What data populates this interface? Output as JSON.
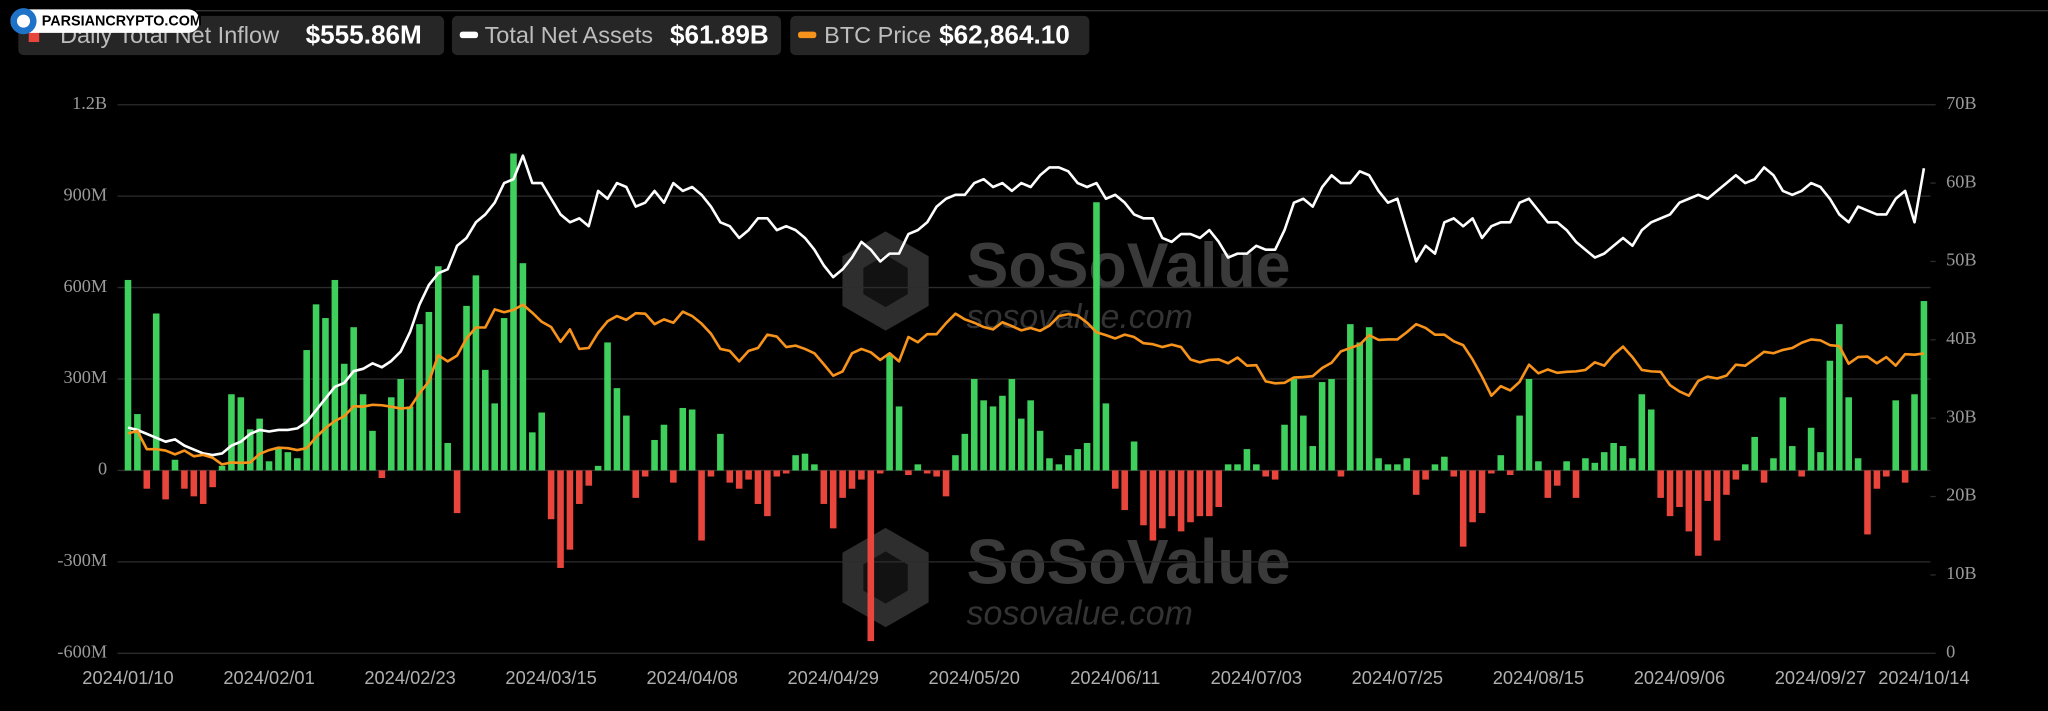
{
  "chart_data": {
    "type": "bar",
    "categories": [
      "2024/01/10",
      null,
      null,
      null,
      null,
      null,
      null,
      null,
      null,
      null,
      null,
      null,
      null,
      null,
      null,
      "2024/02/01",
      null,
      null,
      null,
      null,
      null,
      null,
      null,
      null,
      null,
      null,
      null,
      null,
      null,
      null,
      "2024/02/23",
      null,
      null,
      null,
      null,
      null,
      null,
      null,
      null,
      null,
      null,
      null,
      null,
      null,
      null,
      "2024/03/15",
      null,
      null,
      null,
      null,
      null,
      null,
      null,
      null,
      null,
      null,
      null,
      null,
      null,
      null,
      "2024/04/08",
      null,
      null,
      null,
      null,
      null,
      null,
      null,
      null,
      null,
      null,
      null,
      null,
      null,
      null,
      "2024/04/29",
      null,
      null,
      null,
      null,
      null,
      null,
      null,
      null,
      null,
      null,
      null,
      null,
      null,
      null,
      "2024/05/20",
      null,
      null,
      null,
      null,
      null,
      null,
      null,
      null,
      null,
      null,
      null,
      null,
      null,
      null,
      "2024/06/11",
      null,
      null,
      null,
      null,
      null,
      null,
      null,
      null,
      null,
      null,
      null,
      null,
      null,
      null,
      "2024/07/03",
      null,
      null,
      null,
      null,
      null,
      null,
      null,
      null,
      null,
      null,
      null,
      null,
      null,
      null,
      "2024/07/25",
      null,
      null,
      null,
      null,
      null,
      null,
      null,
      null,
      null,
      null,
      null,
      null,
      null,
      null,
      "2024/08/15",
      null,
      null,
      null,
      null,
      null,
      null,
      null,
      null,
      null,
      null,
      null,
      null,
      null,
      null,
      "2024/09/06",
      null,
      null,
      null,
      null,
      null,
      null,
      null,
      null,
      null,
      null,
      null,
      null,
      null,
      null,
      "2024/09/27",
      null,
      null,
      null,
      null,
      null,
      null,
      null,
      null,
      null,
      null,
      "2024/10/14"
    ],
    "series": [
      {
        "name": "Daily Total Net Inflow",
        "type": "bar",
        "color": "#3ecf5c",
        "negative_color": "#e8453c",
        "value_label": "$555.86M",
        "values": [
          625,
          185,
          -60,
          515,
          -95,
          35,
          -60,
          -85,
          -110,
          -55,
          15,
          250,
          240,
          135,
          170,
          30,
          75,
          60,
          40,
          395,
          545,
          500,
          625,
          350,
          470,
          250,
          130,
          -25,
          240,
          300,
          210,
          480,
          520,
          670,
          90,
          -140,
          540,
          640,
          330,
          220,
          500,
          1040,
          680,
          125,
          190,
          -160,
          -320,
          -260,
          -110,
          -50,
          15,
          420,
          270,
          180,
          -90,
          -20,
          100,
          150,
          -40,
          205,
          200,
          -230,
          -20,
          120,
          -40,
          -60,
          -30,
          -110,
          -150,
          -20,
          -10,
          50,
          55,
          20,
          -110,
          -190,
          -90,
          -60,
          -30,
          -560,
          -10,
          380,
          210,
          -15,
          20,
          -10,
          -20,
          -85,
          50,
          120,
          300,
          230,
          210,
          245,
          300,
          170,
          230,
          130,
          40,
          20,
          50,
          70,
          90,
          880,
          220,
          -60,
          -130,
          95,
          -180,
          -230,
          -190,
          -150,
          -200,
          -170,
          -150,
          -150,
          -120,
          20,
          20,
          70,
          20,
          -20,
          -30,
          150,
          300,
          180,
          80,
          290,
          300,
          -20,
          480,
          420,
          470,
          40,
          20,
          20,
          40,
          -80,
          -30,
          20,
          45,
          -20,
          -250,
          -170,
          -140,
          -10,
          50,
          -15,
          180,
          300,
          30,
          -90,
          -50,
          30,
          -90,
          40,
          25,
          60,
          90,
          80,
          40,
          250,
          200,
          -90,
          -150,
          -120,
          -200,
          -280,
          -100,
          -230,
          -80,
          -30,
          20,
          110,
          -40,
          40,
          240,
          80,
          -20,
          140,
          60,
          360,
          480,
          240,
          40,
          -210,
          -60,
          -20,
          230,
          -40,
          250,
          555.86
        ]
      },
      {
        "name": "Total Net Assets",
        "type": "line",
        "axis": "y2",
        "color": "#ffffff",
        "value_label": "$61.89B",
        "values": [
          28.8,
          28.5,
          28,
          27.5,
          27,
          27.3,
          26.5,
          26,
          25.5,
          25.3,
          25.5,
          26.5,
          27,
          28,
          28.5,
          28.3,
          28.5,
          28.5,
          28.7,
          29.5,
          31,
          32.5,
          34,
          34.5,
          36,
          36.3,
          37,
          36.5,
          37.3,
          38.5,
          41,
          44.5,
          47,
          48.5,
          49,
          52,
          53,
          55,
          56,
          57.5,
          60,
          60.5,
          63.5,
          60,
          60,
          58,
          56,
          55,
          55.5,
          54.5,
          59,
          58,
          60,
          59.5,
          57,
          57.5,
          59,
          57.5,
          60,
          59,
          59.5,
          58.5,
          57,
          55,
          54.5,
          53,
          54,
          55.5,
          55.5,
          54,
          54.5,
          54,
          53,
          51.5,
          49.5,
          48,
          49,
          50.5,
          52.5,
          51.5,
          50,
          51,
          51,
          53.5,
          54,
          55,
          57,
          58,
          58.5,
          58.5,
          60,
          60.5,
          59.5,
          60,
          59,
          60,
          59.5,
          61,
          62,
          62,
          61.5,
          60,
          59.5,
          60,
          58,
          58.5,
          57.5,
          56,
          55.5,
          55.5,
          53,
          52.5,
          53.5,
          53.5,
          53,
          54,
          52.5,
          50.5,
          51,
          51,
          52,
          51.5,
          51.5,
          54,
          57.5,
          58,
          57,
          59.5,
          61,
          60,
          60,
          61.5,
          61,
          59,
          57.5,
          58,
          54,
          50,
          52,
          51,
          55,
          55.5,
          54.5,
          55.5,
          53,
          54.5,
          55,
          55,
          57.5,
          58,
          56.5,
          55,
          55,
          54,
          52.5,
          51.5,
          50.5,
          51,
          52,
          53,
          52,
          54,
          55,
          55.5,
          56,
          57.5,
          58,
          58.5,
          58,
          59,
          60,
          61,
          60,
          60.5,
          62,
          61,
          59,
          58.5,
          59,
          60,
          59.5,
          58,
          56,
          55,
          57,
          56.5,
          56,
          56,
          58,
          59,
          55,
          61.89
        ]
      },
      {
        "name": "BTC Price",
        "type": "line",
        "axis": "y3",
        "color": "#f7931a",
        "value_label": "$62,864.10",
        "values": [
          46100,
          46600,
          42800,
          42800,
          42500,
          41700,
          42500,
          41300,
          41600,
          41000,
          39600,
          40000,
          39900,
          40000,
          41800,
          42600,
          43100,
          43000,
          42600,
          43000,
          45300,
          47200,
          48700,
          49700,
          51800,
          51700,
          52100,
          52000,
          51700,
          51300,
          51500,
          54500,
          57000,
          62500,
          61200,
          62400,
          66000,
          68300,
          68300,
          72100,
          71500,
          72000,
          73100,
          71400,
          69500,
          68400,
          65300,
          67900,
          63800,
          64000,
          67200,
          69600,
          70700,
          69900,
          71300,
          71200,
          69000,
          70000,
          69300,
          71600,
          70700,
          69100,
          67000,
          63800,
          63400,
          61200,
          63400,
          64000,
          66800,
          66400,
          64200,
          64500,
          63800,
          62900,
          60600,
          58200,
          59100,
          62900,
          63800,
          63100,
          61500,
          62900,
          61200,
          66300,
          65200,
          66900,
          66900,
          69200,
          71200,
          70000,
          69300,
          68400,
          67900,
          69400,
          68600,
          67700,
          68200,
          67600,
          68700,
          70700,
          71100,
          70800,
          69300,
          67300,
          66700,
          66000,
          66800,
          66300,
          65000,
          64800,
          64200,
          64700,
          64200,
          61600,
          61000,
          61500,
          61600,
          60800,
          62000,
          60300,
          60400,
          57000,
          56600,
          56700,
          57800,
          57900,
          58100,
          59800,
          60900,
          63300,
          64000,
          64700,
          66700,
          65700,
          65800,
          65800,
          67300,
          69000,
          68200,
          66800,
          66800,
          65400,
          64600,
          61600,
          58000,
          54000,
          56000,
          55100,
          56900,
          60500,
          58700,
          59500,
          58800,
          59000,
          59100,
          59400,
          61000,
          60300,
          62600,
          64300,
          62100,
          59400,
          59100,
          59000,
          56200,
          54900,
          54000,
          57100,
          58000,
          57600,
          58200,
          60500,
          60300,
          61700,
          63200,
          62900,
          63600,
          64000,
          65100,
          65800,
          65600,
          64600,
          64400,
          60700,
          62100,
          62200,
          60800,
          62100,
          60300,
          62700,
          62600,
          62864.1
        ]
      }
    ],
    "ylim": [
      -600,
      1200
    ],
    "yticks": [
      {
        "value": 1200,
        "label": "1.2B"
      },
      {
        "value": 900,
        "label": "900M"
      },
      {
        "value": 600,
        "label": "600M"
      },
      {
        "value": 300,
        "label": "300M"
      },
      0,
      {
        "value": -300,
        "label": "-300M"
      },
      {
        "value": -600,
        "label": "-600M"
      }
    ],
    "y2lim": [
      0,
      70
    ],
    "y2ticks": [
      0,
      {
        "value": 10,
        "label": "10B"
      },
      {
        "value": 20,
        "label": "20B"
      },
      {
        "value": 30,
        "label": "30B"
      },
      {
        "value": 40,
        "label": "40B"
      },
      {
        "value": 50,
        "label": "50B"
      },
      {
        "value": 60,
        "label": "60B"
      },
      {
        "value": 70,
        "label": "70B"
      }
    ],
    "y3lim": [
      0,
      115000
    ],
    "grid": true
  },
  "overlay": {
    "badge": "PARSIANCRYPTO.COM",
    "watermark_brand": "SoSoValue",
    "watermark_url": "sosovalue.com"
  }
}
